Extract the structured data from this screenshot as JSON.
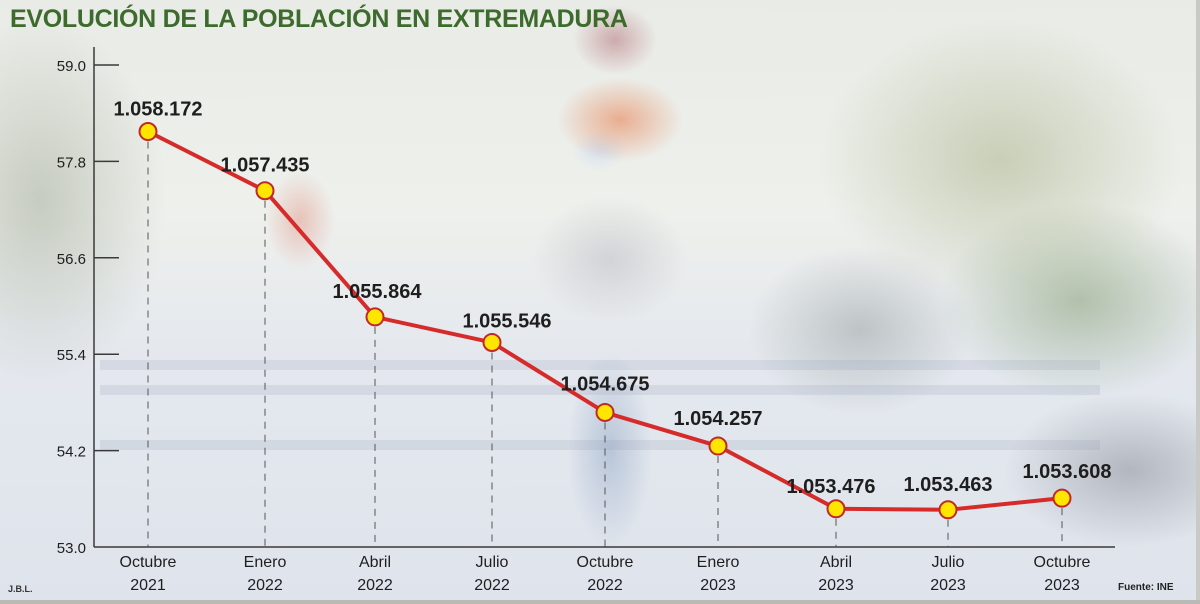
{
  "title": "EVOLUCIÓN DE LA POBLACIÓN EN EXTREMADURA",
  "credit": "J.B.L.",
  "source": "Fuente: INE",
  "colors": {
    "title": "#3d6b2d",
    "line": "#d62b2b",
    "marker_fill": "#ffe600",
    "marker_stroke": "#c0282a",
    "axis": "#3a3a3a",
    "text": "#1e1e1e"
  },
  "chart_data": {
    "type": "line",
    "title": "EVOLUCIÓN DE LA POBLACIÓN EN EXTREMADURA",
    "xlabel": "",
    "ylabel": "",
    "ylim": [
      53.0,
      59.0
    ],
    "yticks": [
      "59.0",
      "57.8",
      "56.6",
      "55.4",
      "54.2",
      "53.0"
    ],
    "grid": false,
    "legend": "none",
    "categories": [
      [
        "Octubre",
        "2021"
      ],
      [
        "Enero",
        "2022"
      ],
      [
        "Abril",
        "2022"
      ],
      [
        "Julio",
        "2022"
      ],
      [
        "Octubre",
        "2022"
      ],
      [
        "Enero",
        "2023"
      ],
      [
        "Abril",
        "2023"
      ],
      [
        "Julio",
        "2023"
      ],
      [
        "Octubre",
        "2023"
      ]
    ],
    "series": [
      {
        "name": "Población",
        "values": [
          1058172,
          1057435,
          1055864,
          1055546,
          1054675,
          1054257,
          1053476,
          1053463,
          1053608
        ],
        "labels": [
          "1.058.172",
          "1.057.435",
          "1.055.864",
          "1.055.546",
          "1.054.675",
          "1.054.257",
          "1.053.476",
          "1.053.463",
          "1.053.608"
        ]
      }
    ],
    "annotations": [
      "J.B.L.",
      "Fuente: INE"
    ]
  }
}
